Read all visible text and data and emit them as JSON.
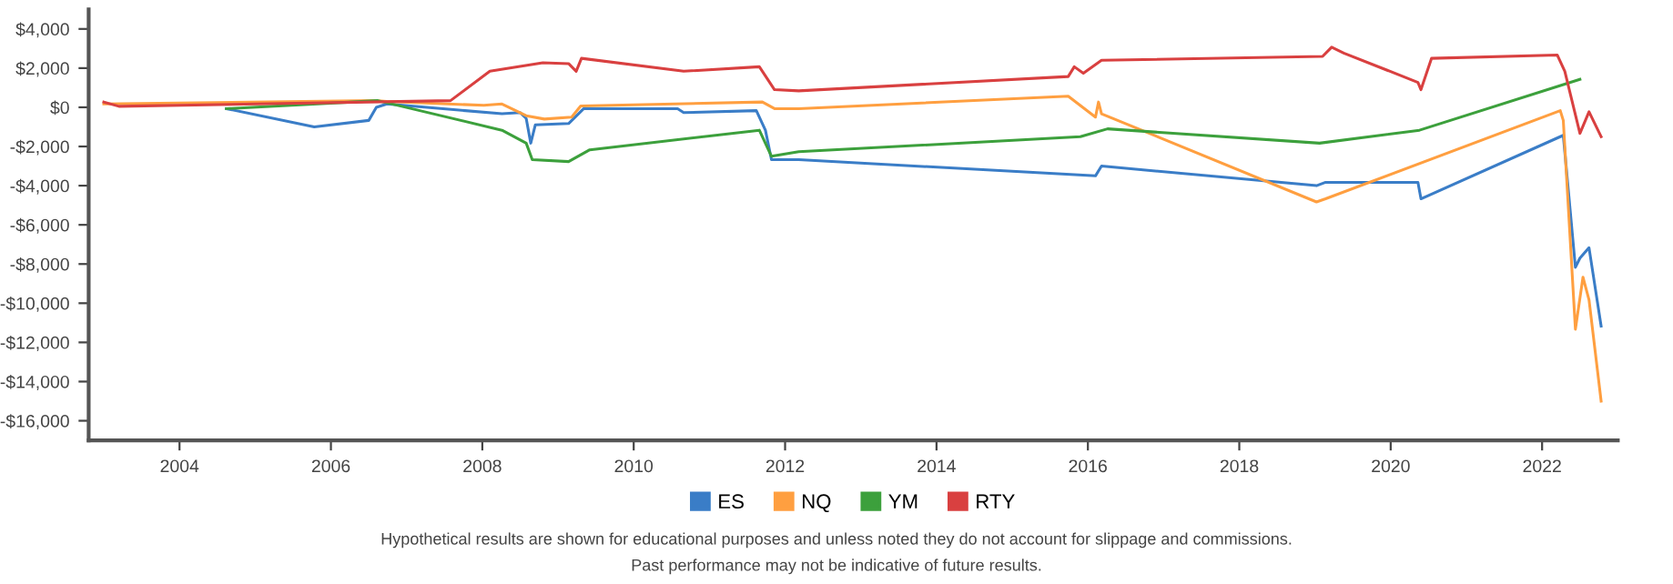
{
  "chart_data": {
    "type": "line",
    "xlim": [
      2002.8,
      2023.0
    ],
    "xticks": [
      2004,
      2006,
      2008,
      2010,
      2012,
      2014,
      2016,
      2018,
      2020,
      2022
    ],
    "ylim": [
      -17000,
      5000
    ],
    "yticks": [
      {
        "value": 4000,
        "label": "$4,000"
      },
      {
        "value": 2000,
        "label": "$2,000"
      },
      {
        "value": 0,
        "label": "$0"
      },
      {
        "value": -2000,
        "label": "-$2,000"
      },
      {
        "value": -4000,
        "label": "-$4,000"
      },
      {
        "value": -6000,
        "label": "-$6,000"
      },
      {
        "value": -8000,
        "label": "-$8,000"
      },
      {
        "value": -10000,
        "label": "-$10,000"
      },
      {
        "value": -12000,
        "label": "-$12,000"
      },
      {
        "value": -14000,
        "label": "-$14,000"
      },
      {
        "value": -16000,
        "label": "-$16,000"
      }
    ],
    "grid": false,
    "legend": "bottom",
    "marker": "none",
    "line_style": "solid",
    "annotations": [
      "Hypothetical results are shown for educational purposes and unless noted they do not account for slippage and commissions.",
      "Past performance may not be indicative of future results."
    ],
    "series": [
      {
        "name": "ES",
        "color": "#3a7dc7",
        "x": [
          2004.62,
          2005.78,
          2006.5,
          2006.6,
          2006.74,
          2008.26,
          2008.5,
          2008.58,
          2008.64,
          2008.7,
          2009.14,
          2009.34,
          2010.58,
          2010.66,
          2011.62,
          2011.74,
          2011.82,
          2012.18,
          2016.1,
          2016.18,
          2019.02,
          2019.14,
          2020.36,
          2020.4,
          2022.28,
          2022.44,
          2022.5,
          2022.62,
          2022.78
        ],
        "values": [
          -70,
          -1000,
          -670,
          0,
          170,
          -330,
          -270,
          -570,
          -1830,
          -900,
          -830,
          -70,
          -70,
          -270,
          -170,
          -1170,
          -2670,
          -2670,
          -3500,
          -3000,
          -4000,
          -3830,
          -3830,
          -4670,
          -1430,
          -8170,
          -7700,
          -7170,
          -11170
        ]
      },
      {
        "name": "NQ",
        "color": "#ff9f40",
        "x": [
          2003.0,
          2006.58,
          2006.74,
          2008.02,
          2008.26,
          2008.58,
          2008.82,
          2009.18,
          2009.3,
          2011.7,
          2011.86,
          2012.18,
          2015.74,
          2016.1,
          2016.14,
          2016.18,
          2019.02,
          2019.14,
          2022.24,
          2022.28,
          2022.44,
          2022.54,
          2022.62,
          2022.78
        ],
        "values": [
          170,
          340,
          300,
          100,
          170,
          -430,
          -600,
          -500,
          70,
          270,
          -70,
          -70,
          570,
          -500,
          270,
          -330,
          -4830,
          -4670,
          -170,
          -670,
          -11330,
          -8670,
          -9830,
          -15000
        ]
      },
      {
        "name": "YM",
        "color": "#3ca03c",
        "x": [
          2004.62,
          2006.62,
          2008.26,
          2008.58,
          2008.66,
          2009.14,
          2009.42,
          2011.66,
          2011.82,
          2012.18,
          2015.9,
          2016.26,
          2019.06,
          2020.38,
          2022.5
        ],
        "values": [
          -70,
          340,
          -1170,
          -1830,
          -2670,
          -2770,
          -2170,
          -1170,
          -2500,
          -2270,
          -1500,
          -1100,
          -1830,
          -1170,
          1430
        ]
      },
      {
        "name": "RTY",
        "color": "#d94040",
        "x": [
          2003.0,
          2003.2,
          2007.58,
          2008.1,
          2008.8,
          2009.14,
          2009.24,
          2009.31,
          2010.66,
          2011.66,
          2011.86,
          2012.18,
          2015.74,
          2015.82,
          2015.94,
          2016.18,
          2019.1,
          2019.22,
          2019.38,
          2020.36,
          2020.4,
          2020.54,
          2022.2,
          2022.3,
          2022.5,
          2022.62,
          2022.78
        ],
        "values": [
          270,
          50,
          340,
          1840,
          2270,
          2230,
          1840,
          2500,
          1840,
          2070,
          900,
          840,
          1570,
          2070,
          1740,
          2400,
          2600,
          3070,
          2770,
          1270,
          900,
          2500,
          2670,
          1840,
          -1330,
          -230,
          -1500
        ]
      }
    ]
  }
}
